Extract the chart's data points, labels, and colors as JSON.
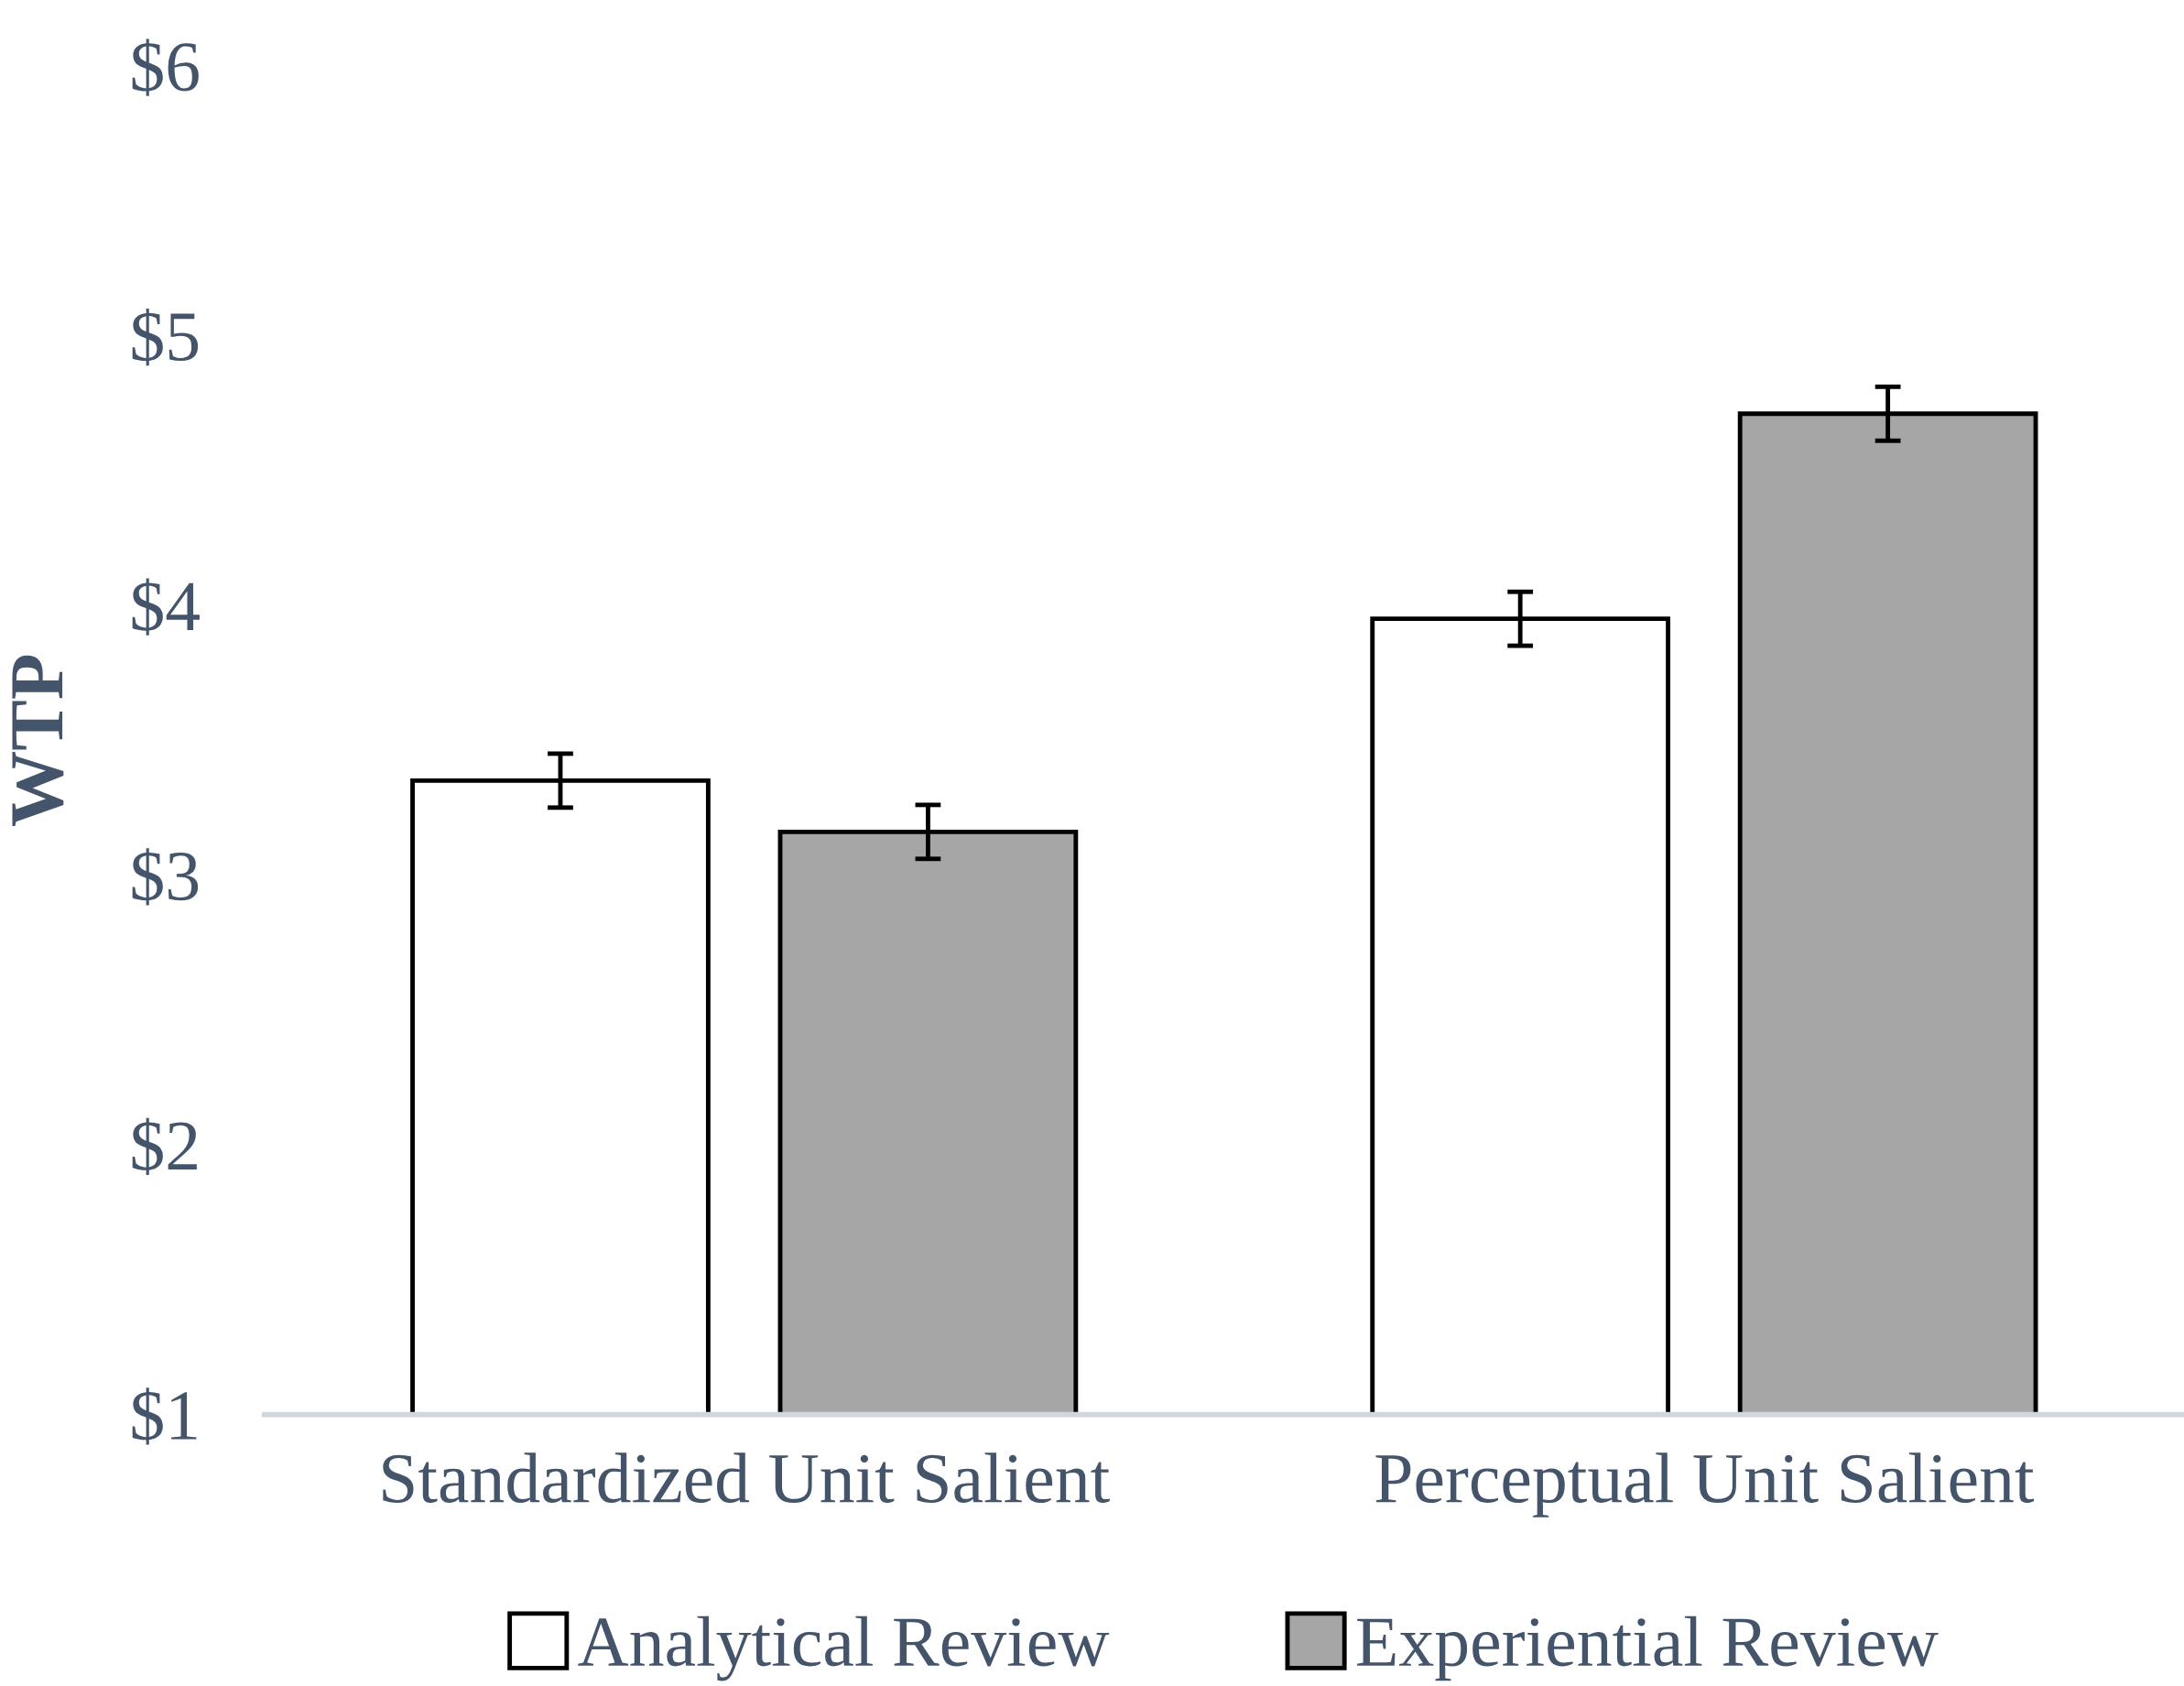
{
  "chart_data": {
    "type": "bar",
    "ylabel": "WTP",
    "categories": [
      "Standardized Unit Salient",
      "Perceptual Unit Salient"
    ],
    "series": [
      {
        "name": "Analytical Review",
        "color": "#ffffff",
        "values": [
          3.35,
          3.95
        ],
        "errors": [
          0.1,
          0.1
        ]
      },
      {
        "name": "Experiential Review",
        "color": "#a6a6a6",
        "values": [
          3.16,
          4.71
        ],
        "errors": [
          0.1,
          0.1
        ]
      }
    ],
    "ylim": [
      1,
      6
    ],
    "yticks": [
      {
        "value": 1,
        "label": "$1"
      },
      {
        "value": 2,
        "label": "$2"
      },
      {
        "value": 3,
        "label": "$3"
      },
      {
        "value": 4,
        "label": "$4"
      },
      {
        "value": 5,
        "label": "$5"
      },
      {
        "value": 6,
        "label": "$6"
      }
    ],
    "grid": false,
    "legend": "bottom"
  }
}
